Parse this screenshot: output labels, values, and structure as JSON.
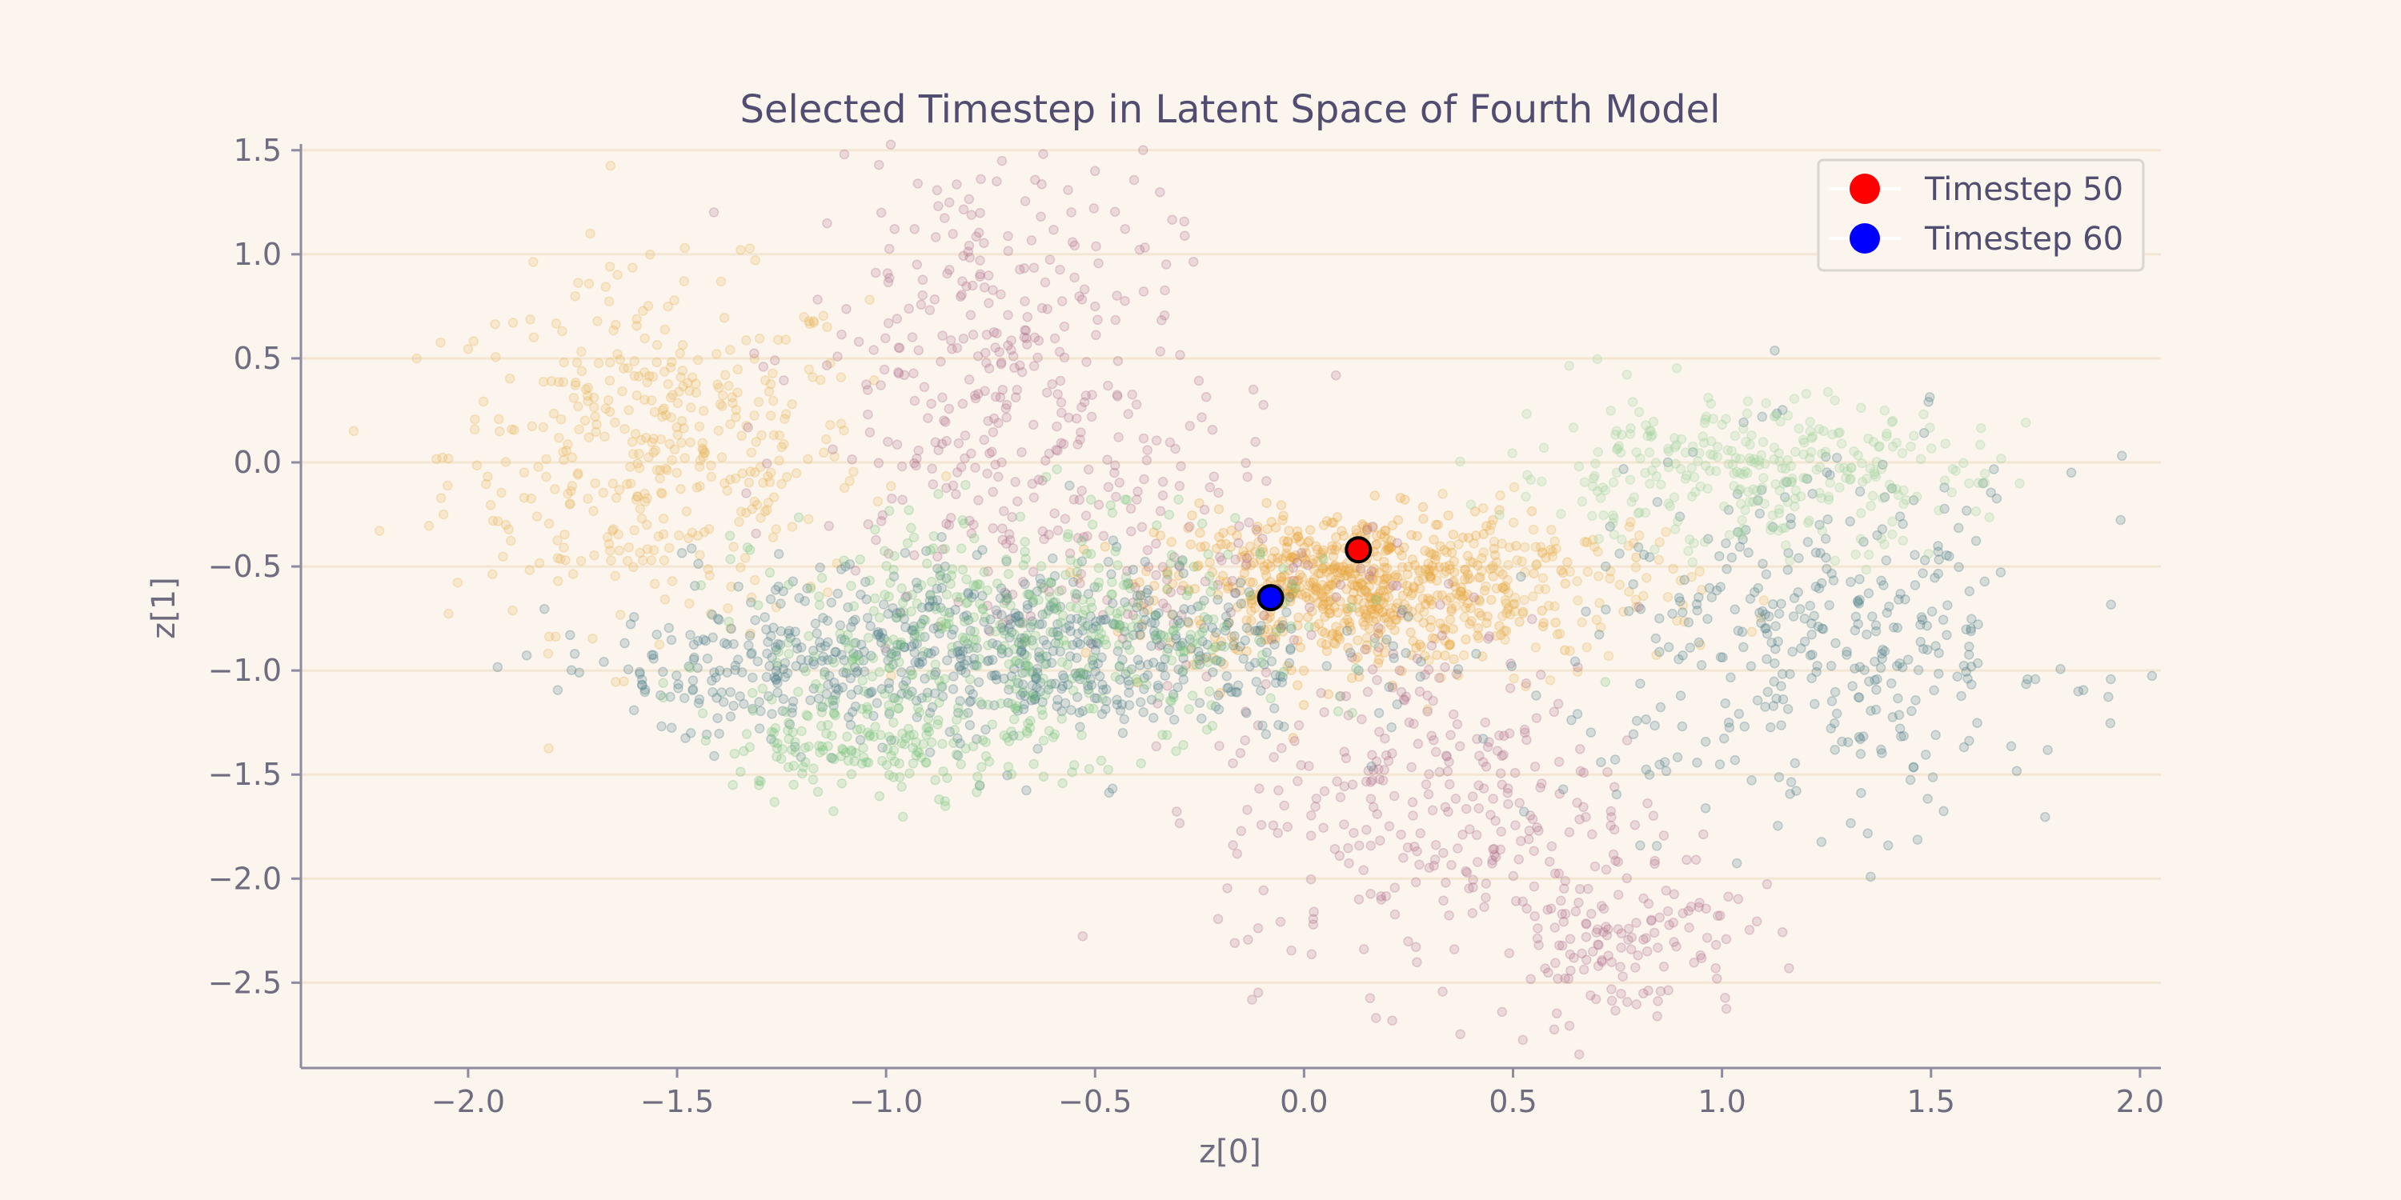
{
  "chart_data": {
    "type": "scatter",
    "title": "Selected Timestep in Latent Space of Fourth Model",
    "xlabel": "z[0]",
    "ylabel": "z[1]",
    "xlim": [
      -2.4,
      2.05
    ],
    "ylim": [
      -2.91,
      1.53
    ],
    "xticks": [
      -2.0,
      -1.5,
      -1.0,
      -0.5,
      0.0,
      0.5,
      1.0,
      1.5,
      2.0
    ],
    "yticks": [
      -2.5,
      -2.0,
      -1.5,
      -1.0,
      -0.5,
      0.0,
      0.5,
      1.0,
      1.5
    ],
    "xtick_labels": [
      "−2.0",
      "−1.5",
      "−1.0",
      "−0.5",
      "0.0",
      "0.5",
      "1.0",
      "1.5",
      "2.0"
    ],
    "ytick_labels": [
      "−2.5",
      "−2.0",
      "−1.5",
      "−1.0",
      "−0.5",
      "0.0",
      "0.5",
      "1.0",
      "1.5"
    ],
    "grid": "horizontal",
    "legend_position": "top-right",
    "background_clusters": [
      {
        "color": "#e8b55a",
        "points": 420,
        "cx": -1.55,
        "cy": 0.05,
        "sx": 0.25,
        "sy": 0.42
      },
      {
        "color": "#e8a43a",
        "points": 650,
        "cx": 0.1,
        "cy": -0.6,
        "sx": 0.22,
        "sy": 0.18
      },
      {
        "color": "#e8b55a",
        "points": 150,
        "cx": 0.55,
        "cy": -0.6,
        "sx": 0.2,
        "sy": 0.2
      },
      {
        "color": "#b0708f",
        "points": 320,
        "cx": -0.75,
        "cy": 0.5,
        "sx": 0.22,
        "sy": 0.55
      },
      {
        "color": "#b0708f",
        "points": 300,
        "cx": 0.3,
        "cy": -1.6,
        "sx": 0.25,
        "sy": 0.45
      },
      {
        "color": "#b0708f",
        "points": 140,
        "cx": 0.75,
        "cy": -2.25,
        "sx": 0.15,
        "sy": 0.22
      },
      {
        "color": "#b0708f",
        "points": 150,
        "cx": -0.4,
        "cy": -0.4,
        "sx": 0.3,
        "sy": 0.3
      },
      {
        "color": "#4f7f88",
        "points": 650,
        "cx": -0.7,
        "cy": -0.9,
        "sx": 0.38,
        "sy": 0.22
      },
      {
        "color": "#4f7f88",
        "points": 380,
        "cx": 1.25,
        "cy": -0.85,
        "sx": 0.3,
        "sy": 0.42
      },
      {
        "color": "#4f7f88",
        "points": 120,
        "cx": -1.35,
        "cy": -1.05,
        "sx": 0.25,
        "sy": 0.15
      },
      {
        "color": "#76c47a",
        "points": 420,
        "cx": -0.65,
        "cy": -0.8,
        "sx": 0.32,
        "sy": 0.28
      },
      {
        "color": "#76c47a",
        "points": 180,
        "cx": -1.0,
        "cy": -1.35,
        "sx": 0.2,
        "sy": 0.12
      },
      {
        "color": "#9fd39a",
        "points": 320,
        "cx": 1.05,
        "cy": -0.05,
        "sx": 0.28,
        "sy": 0.18
      }
    ],
    "series": [
      {
        "name": "Timestep 50",
        "color": "#ff0000",
        "x": [
          0.13
        ],
        "y": [
          -0.42
        ]
      },
      {
        "name": "Timestep 60",
        "color": "#0000ff",
        "x": [
          -0.08
        ],
        "y": [
          -0.65
        ]
      }
    ]
  }
}
